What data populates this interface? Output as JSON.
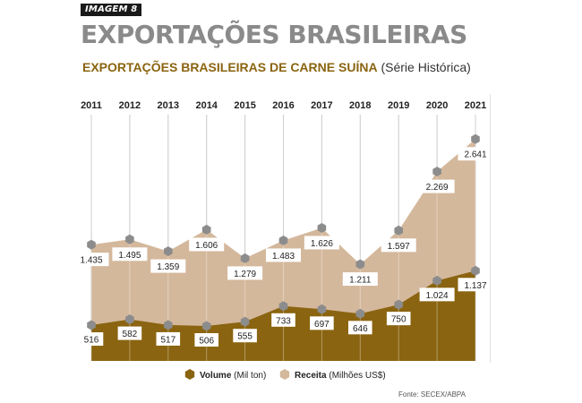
{
  "badge": "IMAGEM 8",
  "header": {
    "title": "EXPORTAÇÕES BRASILEIRAS",
    "subtitle": "EXPORTAÇÕES BRASILEIRAS DE CARNE SUÍNA",
    "subtitle_paren": "(Série Histórica)"
  },
  "source": "Fonte: SECEX/ABPA",
  "chart_data": {
    "type": "area",
    "title": "EXPORTAÇÕES BRASILEIRAS DE CARNE SUÍNA (Série Histórica)",
    "categories": [
      "2011",
      "2012",
      "2013",
      "2014",
      "2015",
      "2016",
      "2017",
      "2018",
      "2019",
      "2020",
      "2021"
    ],
    "series": [
      {
        "name": "Volume",
        "unit": "(Mil ton)",
        "values": [
          516,
          582,
          517,
          506,
          555,
          733,
          697,
          646,
          750,
          1024,
          1137
        ],
        "labels": [
          "516",
          "582",
          "517",
          "506",
          "555",
          "733",
          "697",
          "646",
          "750",
          "1.024",
          "1.137"
        ],
        "color": "#8a6410"
      },
      {
        "name": "Receita",
        "unit": "(Milhões US$)",
        "values": [
          1435,
          1495,
          1359,
          1606,
          1279,
          1483,
          1626,
          1211,
          1597,
          2269,
          2641
        ],
        "labels": [
          "1.435",
          "1.495",
          "1.359",
          "1.606",
          "1.279",
          "1.483",
          "1.626",
          "1.211",
          "1.597",
          "2.269",
          "2.641"
        ],
        "color": "#d4b89c"
      }
    ],
    "marker_color": "#8c8c8c",
    "grid": "vertical",
    "legend": "bottom-center"
  }
}
